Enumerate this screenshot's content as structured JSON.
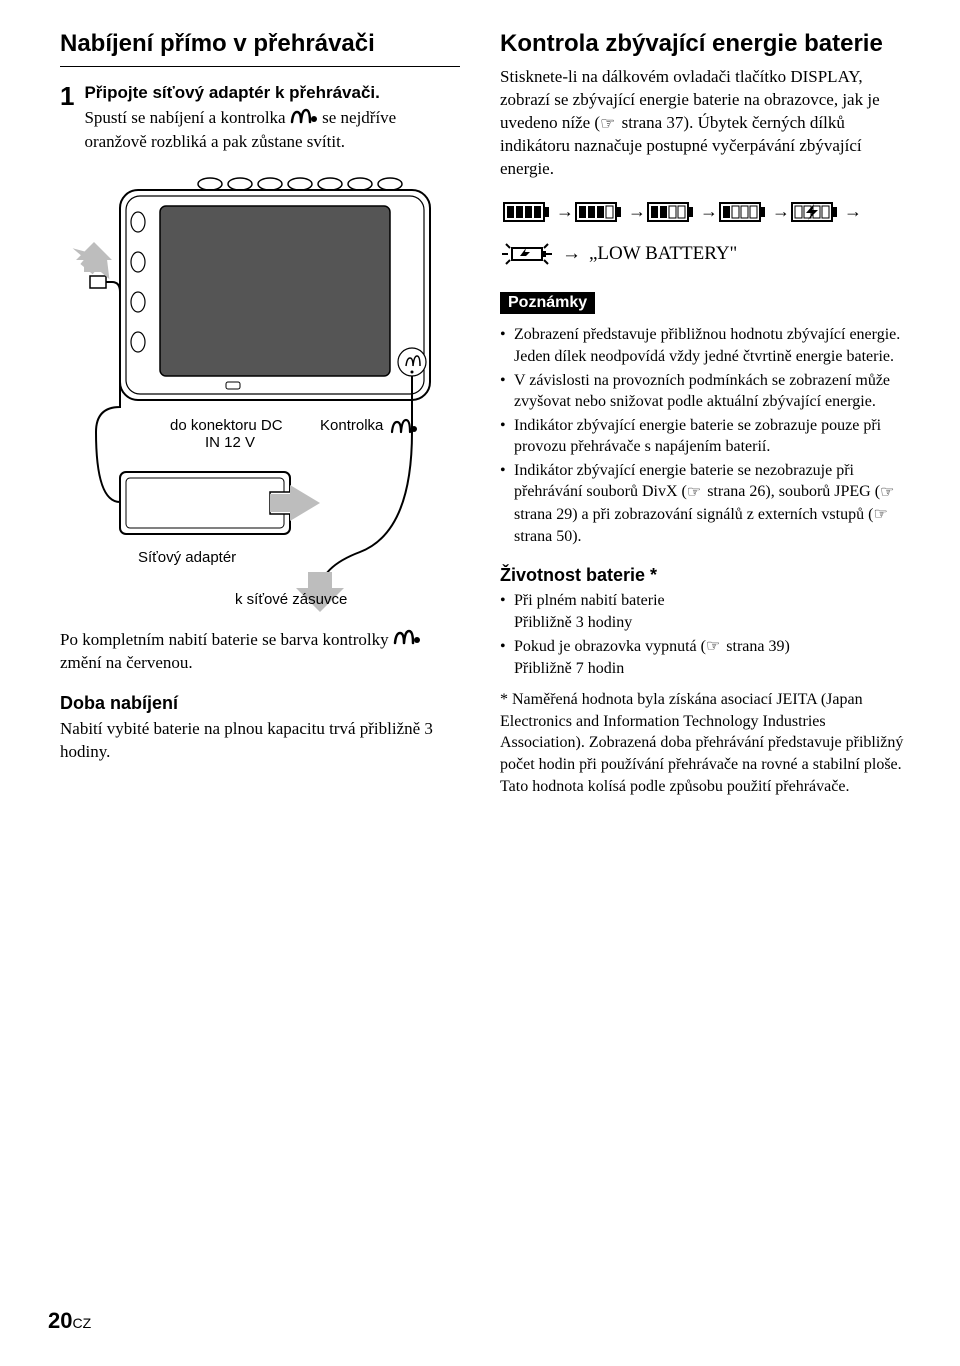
{
  "page": {
    "number": "20",
    "suffix": "CZ"
  },
  "colors": {
    "text": "#000000",
    "background": "#ffffff",
    "arrow_fill": "#bdbdbd",
    "notes_bg": "#000000",
    "notes_fg": "#ffffff"
  },
  "left": {
    "heading": "Nabíjení přímo v přehrávači",
    "step1_num": "1",
    "step1_title": "Připojte síťový adaptér k přehrávači.",
    "step1_body_a": "Spustí se nabíjení a kontrolka ",
    "step1_body_b": " se nejdříve oranžově rozbliká a pak zůstane svítit.",
    "labels": {
      "dc_in": "do konektoru DC IN 12 V",
      "kontrolka": "Kontrolka",
      "adapter": "Síťový adaptér",
      "to_wall": "k síťové zásuvce"
    },
    "after_illus_a": "Po kompletním nabití baterie se barva kontrolky ",
    "after_illus_b": " změní na červenou.",
    "charge_heading": "Doba nabíjení",
    "charge_body": "Nabití vybité baterie na plnou kapacitu trvá přibližně 3 hodiny."
  },
  "right": {
    "heading": "Kontrola zbývající energie baterie",
    "intro_a": "Stisknete-li na dálkovém ovladači tlačítko DISPLAY, zobrazí se zbývající energie baterie na obrazovce, jak je uvedeno níže (",
    "intro_pageref1": " strana 37).",
    "intro_b": " Úbytek černých dílků indikátoru naznačuje postupné vyčerpávání zbývající energie.",
    "low_battery": "„LOW BATTERY\"",
    "notes_label": "Poznámky",
    "notes": [
      "Zobrazení představuje přibližnou hodnotu zbývající energie. Jeden dílek neodpovídá vždy jedné čtvrtině energie baterie.",
      "V závislosti na provozních podmínkách se zobrazení může zvyšovat nebo snižovat podle aktuální zbývající energie.",
      "Indikátor zbývající energie baterie se zobrazuje pouze při provozu přehrávače s napájením baterií."
    ],
    "note4_a": "Indikátor zbývající energie baterie se nezobrazuje při přehrávání souborů DivX (",
    "note4_ref1": " strana 26), souborů JPEG (",
    "note4_ref2": " strana 29) a při zobrazování signálů z externích vstupů (",
    "note4_ref3": " strana 50).",
    "life_heading": "Životnost baterie *",
    "life_items": [
      {
        "bullet": "Při plném nabití baterie",
        "line2": "Přibližně 3 hodiny"
      },
      {
        "bullet_a": "Pokud je obrazovka vypnutá (",
        "bullet_ref": " strana 39)",
        "line2": "Přibližně 7 hodin"
      }
    ],
    "footnote": "* Naměřená hodnota byla získána asociací JEITA (Japan Electronics and Information Technology Industries Association). Zobrazená doba přehrávání představuje přibližný počet hodin při používání přehrávače na rovné a stabilní ploše. Tato hodnota kolísá podle způsobu použití přehrávače."
  },
  "battery_levels": [
    4,
    3,
    2,
    1,
    0
  ],
  "illustration": {
    "device_fill": "#ffffff",
    "device_stroke": "#000000",
    "screen_fill": "#555555",
    "arrow_fill": "#bdbdbd",
    "adapter_fill": "#ffffff"
  }
}
